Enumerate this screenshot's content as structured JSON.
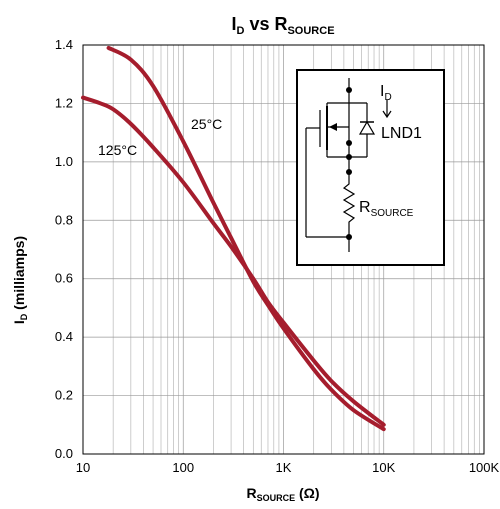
{
  "chart_data": {
    "type": "line",
    "title_main": "I",
    "title_sub": "D",
    "title_mid": " vs R",
    "title_sub2": "SOURCE",
    "xlabel_main": "R",
    "xlabel_sub": "SOURCE",
    "xlabel_unit": " (Ω)",
    "ylabel_main": "I",
    "ylabel_sub": "D",
    "ylabel_unit": " (milliamps)",
    "x_scale": "log",
    "xlim": [
      10,
      100000
    ],
    "ylim": [
      0,
      1.4
    ],
    "x_tick_values": [
      10,
      100,
      1000,
      10000,
      100000
    ],
    "x_tick_labels": [
      "10",
      "100",
      "1K",
      "10K",
      "100K"
    ],
    "y_tick_values": [
      0,
      0.2,
      0.4,
      0.6,
      0.8,
      1.0,
      1.2,
      1.4
    ],
    "y_tick_labels": [
      "0.0",
      "0.2",
      "0.4",
      "0.6",
      "0.8",
      "1.0",
      "1.2",
      "1.4"
    ],
    "grid": true,
    "line_color": "#a51d2d",
    "series": [
      {
        "name": "25°C",
        "x": [
          18,
          30,
          50,
          100,
          200,
          300,
          500,
          700,
          1000,
          2000,
          3000,
          5000,
          10000
        ],
        "y": [
          1.39,
          1.35,
          1.26,
          1.07,
          0.86,
          0.74,
          0.59,
          0.51,
          0.43,
          0.29,
          0.22,
          0.15,
          0.085
        ]
      },
      {
        "name": "125°C",
        "x": [
          10,
          15,
          20,
          30,
          50,
          100,
          200,
          300,
          500,
          700,
          1000,
          2000,
          3000,
          5000,
          10000
        ],
        "y": [
          1.22,
          1.2,
          1.18,
          1.13,
          1.05,
          0.93,
          0.79,
          0.71,
          0.6,
          0.52,
          0.45,
          0.32,
          0.25,
          0.18,
          0.1
        ]
      }
    ],
    "inset": {
      "current_main": "I",
      "current_sub": "D",
      "device_label": "LND1",
      "resistor_main": "R",
      "resistor_sub": "SOURCE"
    }
  }
}
